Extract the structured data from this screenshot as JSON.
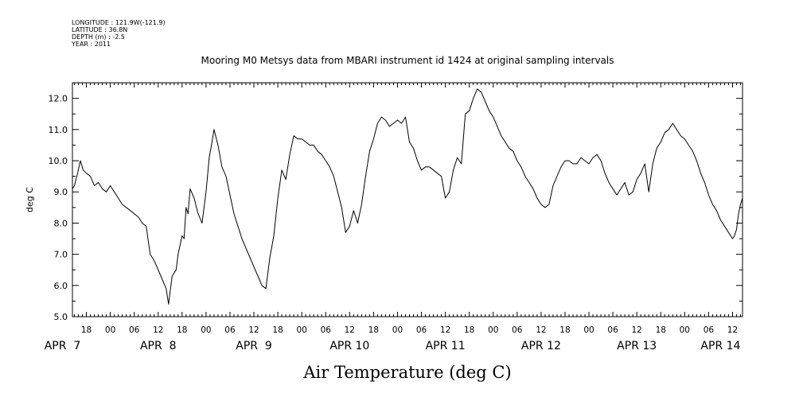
{
  "header": {
    "lines": [
      "LONGITUDE : 121.9W(-121.9)",
      "LATITUDE : 36.8N",
      "DEPTH (m) : -2.5",
      "YEAR : 2011"
    ]
  },
  "chart_data": {
    "type": "line",
    "title": "Mooring M0 Metsys data from MBARI instrument id 1424 at original sampling intervals",
    "xlabel": "Air Temperature (deg C)",
    "ylabel": "deg C",
    "ylim": [
      5.0,
      12.5
    ],
    "yticks": [
      "5.0",
      "6.0",
      "7.0",
      "8.0",
      "9.0",
      "10.0",
      "11.0",
      "12.0"
    ],
    "x_unit": "hours since 2011-04-07 00:00",
    "xlim": [
      14.5,
      182.5
    ],
    "hour_labels": [
      {
        "hour": 18,
        "label": "18"
      },
      {
        "hour": 24,
        "label": "00"
      },
      {
        "hour": 30,
        "label": "06"
      },
      {
        "hour": 36,
        "label": "12"
      },
      {
        "hour": 42,
        "label": "18"
      },
      {
        "hour": 48,
        "label": "00"
      },
      {
        "hour": 54,
        "label": "06"
      },
      {
        "hour": 60,
        "label": "12"
      },
      {
        "hour": 66,
        "label": "18"
      },
      {
        "hour": 72,
        "label": "00"
      },
      {
        "hour": 78,
        "label": "06"
      },
      {
        "hour": 84,
        "label": "12"
      },
      {
        "hour": 90,
        "label": "18"
      },
      {
        "hour": 96,
        "label": "00"
      },
      {
        "hour": 102,
        "label": "06"
      },
      {
        "hour": 108,
        "label": "12"
      },
      {
        "hour": 114,
        "label": "18"
      },
      {
        "hour": 120,
        "label": "00"
      },
      {
        "hour": 126,
        "label": "06"
      },
      {
        "hour": 132,
        "label": "12"
      },
      {
        "hour": 138,
        "label": "18"
      },
      {
        "hour": 144,
        "label": "00"
      },
      {
        "hour": 150,
        "label": "06"
      },
      {
        "hour": 156,
        "label": "12"
      },
      {
        "hour": 162,
        "label": "18"
      },
      {
        "hour": 168,
        "label": "00"
      },
      {
        "hour": 174,
        "label": "06"
      },
      {
        "hour": 180,
        "label": "12"
      }
    ],
    "day_labels": [
      {
        "hour": 12,
        "label": "APR  7"
      },
      {
        "hour": 36,
        "label": "APR  8"
      },
      {
        "hour": 60,
        "label": "APR  9"
      },
      {
        "hour": 84,
        "label": "APR 10"
      },
      {
        "hour": 108,
        "label": "APR 11"
      },
      {
        "hour": 132,
        "label": "APR 12"
      },
      {
        "hour": 156,
        "label": "APR 13"
      },
      {
        "hour": 177,
        "label": "APR 14"
      }
    ],
    "series": [
      {
        "color": "#000000",
        "x": [
          14.5,
          15,
          15.8,
          16.5,
          17.2,
          18,
          19,
          20,
          21,
          22,
          23,
          24,
          25,
          26,
          27,
          28,
          29,
          30,
          31,
          32,
          33,
          34,
          35,
          36,
          37,
          38,
          38.6,
          39.5,
          40.5,
          41,
          42,
          42.5,
          43,
          43.5,
          44,
          45,
          46,
          47,
          47.5,
          48,
          48.8,
          49.5,
          50,
          51,
          52,
          53,
          54,
          55,
          56,
          57,
          58,
          59,
          60,
          61,
          62,
          63,
          64,
          65,
          66,
          67,
          68,
          69,
          70,
          71,
          72,
          73,
          74,
          75,
          76,
          77,
          78,
          79,
          80,
          81,
          82,
          83,
          84,
          85,
          86,
          87,
          88,
          89,
          90,
          91,
          92,
          93,
          94,
          95,
          96,
          97,
          98,
          99,
          100,
          101,
          102,
          103,
          104,
          105,
          106,
          107,
          108,
          109,
          110,
          111,
          112,
          113,
          114,
          115,
          116,
          117,
          118,
          119,
          120,
          121,
          122,
          123,
          124,
          125,
          126,
          127,
          128,
          129,
          130,
          131,
          132,
          133,
          134,
          135,
          136,
          137,
          138,
          139,
          140,
          141,
          142,
          143,
          144,
          145,
          146,
          147,
          148,
          149,
          150,
          151,
          152,
          153,
          154,
          155,
          156,
          157,
          158,
          159,
          160,
          161,
          162,
          163,
          164,
          165,
          166,
          167,
          168,
          169,
          170,
          171,
          172,
          173,
          174,
          175,
          176,
          177,
          178,
          179,
          180,
          180.5,
          181,
          181.5,
          182,
          182.5
        ],
        "y": [
          9.1,
          9.2,
          9.6,
          10.0,
          9.7,
          9.6,
          9.5,
          9.2,
          9.3,
          9.1,
          9.0,
          9.2,
          9.0,
          8.8,
          8.6,
          8.5,
          8.4,
          8.3,
          8.2,
          8.0,
          7.9,
          7.0,
          6.8,
          6.5,
          6.2,
          5.9,
          5.4,
          6.3,
          6.5,
          7.0,
          7.6,
          7.5,
          8.5,
          8.3,
          9.1,
          8.8,
          8.3,
          8.0,
          8.5,
          9.0,
          10.1,
          10.6,
          11.0,
          10.5,
          9.8,
          9.5,
          8.9,
          8.3,
          7.9,
          7.5,
          7.2,
          6.9,
          6.6,
          6.3,
          6.0,
          5.9,
          6.9,
          7.6,
          8.8,
          9.7,
          9.4,
          10.2,
          10.8,
          10.7,
          10.7,
          10.6,
          10.5,
          10.5,
          10.3,
          10.2,
          10.0,
          9.8,
          9.5,
          9.0,
          8.5,
          7.7,
          7.9,
          8.4,
          8.0,
          8.6,
          9.5,
          10.3,
          10.7,
          11.2,
          11.4,
          11.3,
          11.1,
          11.2,
          11.3,
          11.2,
          11.4,
          10.6,
          10.4,
          10.0,
          9.7,
          9.8,
          9.8,
          9.7,
          9.6,
          9.5,
          8.8,
          9.0,
          9.7,
          10.1,
          9.9,
          11.5,
          11.6,
          12.0,
          12.3,
          12.2,
          11.9,
          11.6,
          11.4,
          11.1,
          10.8,
          10.6,
          10.4,
          10.3,
          10.0,
          9.8,
          9.5,
          9.3,
          9.1,
          8.8,
          8.6,
          8.5,
          8.6,
          9.2,
          9.5,
          9.8,
          10.0,
          10.0,
          9.9,
          9.9,
          10.1,
          10.0,
          9.9,
          10.1,
          10.2,
          10.0,
          9.6,
          9.3,
          9.1,
          8.9,
          9.1,
          9.3,
          8.9,
          9.0,
          9.4,
          9.6,
          9.9,
          9.0,
          9.9,
          10.4,
          10.6,
          10.9,
          11.0,
          11.2,
          11.0,
          10.8,
          10.7,
          10.5,
          10.3,
          10.0,
          9.6,
          9.3,
          8.9,
          8.6,
          8.4,
          8.1,
          7.9,
          7.7,
          7.5,
          7.6,
          7.8,
          8.3,
          8.6,
          8.8
        ]
      }
    ],
    "grid": false
  }
}
